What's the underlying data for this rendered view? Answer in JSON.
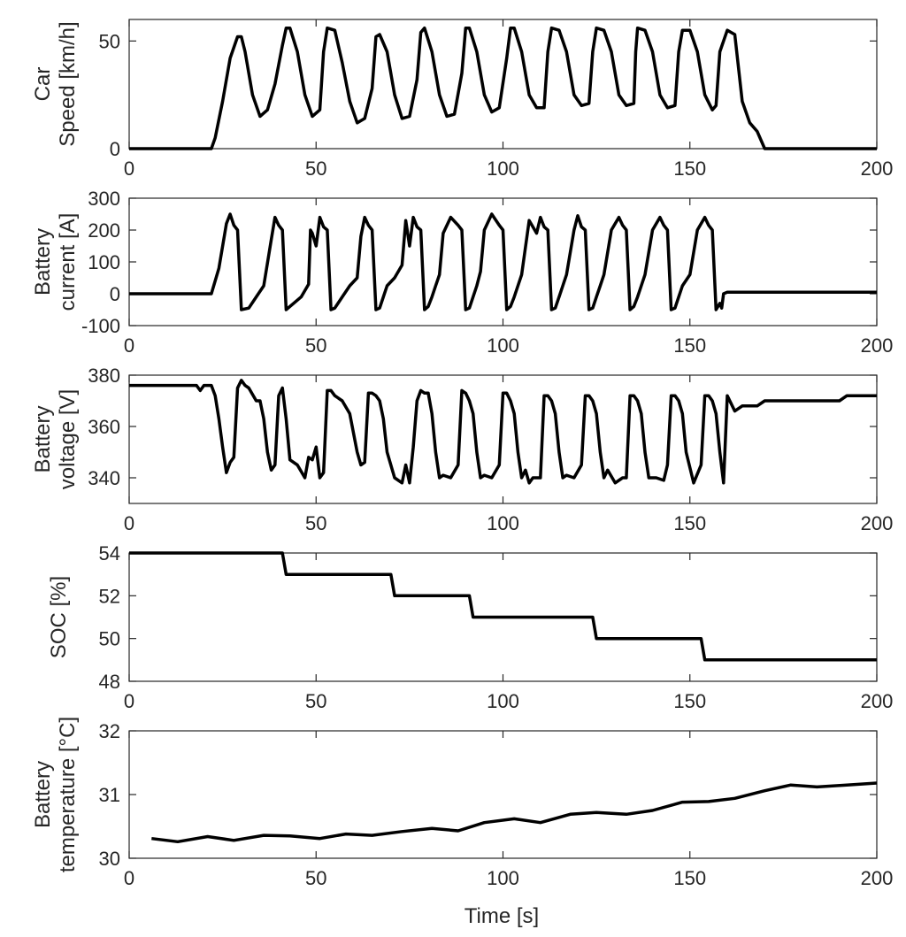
{
  "chart_data": [
    {
      "type": "line",
      "ylabel": [
        "Car",
        "Speed [km/h]"
      ],
      "xlim": [
        0,
        200
      ],
      "ylim": [
        0,
        60
      ],
      "xticks": [
        0,
        50,
        100,
        150,
        200
      ],
      "xtick_labels": [
        "0",
        "50",
        "100",
        "150",
        "200"
      ],
      "yticks": [
        0,
        50
      ],
      "ytick_labels": [
        "0",
        "50"
      ],
      "series": [
        {
          "name": "Car speed",
          "x": [
            0,
            22,
            23,
            25,
            27,
            29,
            30,
            31,
            33,
            35,
            37,
            39,
            41,
            42,
            43,
            45,
            47,
            49,
            51,
            52,
            53,
            55,
            57,
            59,
            61,
            63,
            65,
            66,
            67,
            69,
            71,
            73,
            75,
            77,
            78,
            79,
            81,
            83,
            85,
            87,
            89,
            90,
            91,
            93,
            95,
            97,
            99,
            101,
            102,
            103,
            105,
            107,
            109,
            111,
            112,
            113,
            115,
            117,
            119,
            121,
            123,
            124,
            125,
            127,
            129,
            131,
            133,
            135,
            135.5,
            136,
            138,
            140,
            142,
            144,
            146,
            147,
            148,
            150,
            152,
            154,
            156,
            157,
            158,
            160,
            162,
            164,
            166,
            168,
            170,
            200
          ],
          "y": [
            0,
            0,
            5,
            22,
            42,
            52,
            52,
            45,
            25,
            15,
            18,
            30,
            48,
            56,
            56,
            45,
            25,
            15,
            18,
            45,
            56,
            55,
            40,
            22,
            12,
            14,
            28,
            52,
            53,
            45,
            25,
            14,
            15,
            32,
            54,
            56,
            45,
            25,
            15,
            16,
            35,
            56,
            56,
            45,
            25,
            17,
            19,
            42,
            56,
            56,
            45,
            25,
            19,
            19,
            45,
            56,
            55,
            45,
            25,
            20,
            21,
            45,
            56,
            55,
            45,
            25,
            20,
            21,
            45,
            56,
            55,
            45,
            25,
            19,
            20,
            45,
            55,
            55,
            45,
            25,
            18,
            20,
            45,
            55,
            53,
            22,
            12,
            8,
            0,
            0
          ]
        }
      ]
    },
    {
      "type": "line",
      "ylabel": [
        "Battery",
        "current [A]"
      ],
      "xlim": [
        0,
        200
      ],
      "ylim": [
        -100,
        300
      ],
      "xticks": [
        0,
        50,
        100,
        150,
        200
      ],
      "xtick_labels": [
        "0",
        "50",
        "100",
        "150",
        "200"
      ],
      "yticks": [
        -100,
        0,
        100,
        200,
        300
      ],
      "ytick_labels": [
        "-100",
        "0",
        "100",
        "200",
        "300"
      ],
      "series": [
        {
          "name": "Battery current",
          "x": [
            0,
            22,
            24,
            26,
            27,
            28,
            29,
            30,
            32,
            34,
            36,
            38,
            39,
            40,
            41,
            42,
            44,
            46,
            48,
            48.5,
            49,
            50,
            51,
            52,
            53,
            54,
            55,
            57,
            59,
            61,
            62,
            63,
            64,
            65,
            66,
            67,
            68,
            69,
            71,
            73,
            74,
            75,
            76,
            77,
            78,
            79,
            80,
            81,
            82,
            83,
            84,
            86,
            88,
            89,
            90,
            91,
            92,
            93,
            94,
            95,
            97,
            99,
            100,
            101,
            102,
            103,
            104,
            105,
            107,
            109,
            110,
            111,
            112,
            113,
            114,
            115,
            116,
            117,
            119,
            120,
            121,
            122,
            123,
            124,
            125,
            126,
            127,
            129,
            131,
            132,
            133,
            134,
            135,
            136,
            137,
            138,
            140,
            142,
            143,
            144,
            145,
            146,
            147,
            148,
            150,
            152,
            154,
            155,
            156,
            157,
            158,
            158.5,
            159,
            160,
            200
          ],
          "y": [
            0,
            0,
            80,
            220,
            250,
            215,
            200,
            -50,
            -45,
            -10,
            25,
            170,
            240,
            215,
            200,
            -50,
            -30,
            -10,
            30,
            200,
            190,
            150,
            240,
            210,
            200,
            -50,
            -45,
            -10,
            25,
            50,
            180,
            240,
            215,
            200,
            -50,
            -45,
            -10,
            25,
            50,
            90,
            230,
            150,
            240,
            210,
            200,
            -50,
            -40,
            -10,
            25,
            60,
            190,
            240,
            215,
            200,
            -50,
            -45,
            -10,
            25,
            70,
            200,
            250,
            215,
            200,
            -50,
            -40,
            -10,
            25,
            60,
            230,
            190,
            240,
            210,
            200,
            -50,
            -45,
            -10,
            25,
            60,
            200,
            245,
            210,
            200,
            -50,
            -45,
            -10,
            25,
            60,
            200,
            240,
            215,
            200,
            -50,
            -40,
            -10,
            25,
            60,
            200,
            240,
            215,
            200,
            -50,
            -45,
            -10,
            25,
            60,
            200,
            240,
            215,
            200,
            -50,
            -30,
            -45,
            0,
            5,
            5
          ]
        }
      ]
    },
    {
      "type": "line",
      "ylabel": [
        "Battery",
        "voltage [V]"
      ],
      "xlim": [
        0,
        200
      ],
      "ylim": [
        330,
        380
      ],
      "xticks": [
        0,
        50,
        100,
        150,
        200
      ],
      "xtick_labels": [
        "0",
        "50",
        "100",
        "150",
        "200"
      ],
      "yticks": [
        340,
        360,
        380
      ],
      "ytick_labels": [
        "340",
        "360",
        "380"
      ],
      "series": [
        {
          "name": "Battery voltage",
          "x": [
            0,
            18,
            19,
            20,
            22,
            23,
            24,
            25,
            26,
            27,
            28,
            29,
            30,
            31,
            32,
            34,
            35,
            36,
            37,
            38,
            39,
            40,
            41,
            42,
            43,
            45,
            47,
            48,
            49,
            50,
            51,
            52,
            53,
            54,
            55,
            57,
            59,
            61,
            62,
            63,
            64,
            65,
            66,
            67,
            68,
            69,
            71,
            73,
            74,
            75,
            76,
            77,
            78,
            79,
            80,
            81,
            82,
            83,
            84,
            86,
            88,
            89,
            90,
            91,
            92,
            93,
            94,
            95,
            97,
            99,
            100,
            101,
            102,
            103,
            104,
            105,
            106,
            107,
            108,
            110,
            111,
            112,
            113,
            114,
            115,
            116,
            117,
            119,
            121,
            122,
            123,
            124,
            125,
            126,
            127,
            128,
            130,
            132,
            133,
            134,
            135,
            136,
            137,
            138,
            139,
            141,
            143,
            144,
            145,
            146,
            147,
            148,
            149,
            151,
            153,
            154,
            155,
            156,
            157,
            158,
            159,
            160,
            162,
            164,
            166,
            168,
            170,
            180,
            190,
            192,
            200
          ],
          "y": [
            376,
            376,
            374,
            376,
            376,
            372,
            363,
            352,
            342,
            346,
            348,
            375,
            378,
            376,
            375,
            370,
            370,
            363,
            350,
            343,
            345,
            372,
            375,
            363,
            347,
            345,
            340,
            348,
            347,
            352,
            340,
            342,
            374,
            374,
            372,
            370,
            365,
            350,
            345,
            346,
            373,
            373,
            372,
            370,
            363,
            350,
            340,
            338,
            345,
            338,
            352,
            370,
            374,
            373,
            373,
            365,
            350,
            340,
            341,
            340,
            345,
            374,
            373,
            370,
            365,
            350,
            340,
            341,
            340,
            345,
            373,
            373,
            370,
            365,
            350,
            340,
            343,
            338,
            340,
            340,
            372,
            372,
            370,
            365,
            350,
            340,
            341,
            340,
            345,
            372,
            372,
            370,
            365,
            350,
            340,
            343,
            338,
            340,
            340,
            372,
            372,
            370,
            365,
            350,
            340,
            340,
            339,
            345,
            372,
            372,
            370,
            365,
            350,
            338,
            345,
            372,
            372,
            370,
            365,
            350,
            338,
            372,
            366,
            368,
            368,
            368,
            370,
            370,
            370,
            372,
            372
          ]
        }
      ]
    },
    {
      "type": "line",
      "ylabel": [
        "SOC [%]"
      ],
      "xlim": [
        0,
        200
      ],
      "ylim": [
        48,
        54
      ],
      "xticks": [
        0,
        50,
        100,
        150,
        200
      ],
      "xtick_labels": [
        "0",
        "50",
        "100",
        "150",
        "200"
      ],
      "yticks": [
        48,
        50,
        52,
        54
      ],
      "ytick_labels": [
        "48",
        "50",
        "52",
        "54"
      ],
      "series": [
        {
          "name": "SOC",
          "x": [
            0,
            41,
            42,
            70,
            71,
            91,
            92,
            124,
            125,
            153,
            154,
            200
          ],
          "y": [
            54,
            54,
            53,
            53,
            52,
            52,
            51,
            51,
            50,
            50,
            49,
            49
          ]
        }
      ]
    },
    {
      "type": "line",
      "ylabel": [
        "Battery",
        "temperature [°C]"
      ],
      "xlabel": "Time [s]",
      "xlim": [
        0,
        200
      ],
      "ylim": [
        30,
        32
      ],
      "xticks": [
        0,
        50,
        100,
        150,
        200
      ],
      "xtick_labels": [
        "0",
        "50",
        "100",
        "150",
        "200"
      ],
      "yticks": [
        30,
        31,
        32
      ],
      "ytick_labels": [
        "30",
        "31",
        "32"
      ],
      "series": [
        {
          "name": "Battery temperature",
          "x": [
            6,
            13,
            21,
            28,
            36,
            43,
            51,
            58,
            65,
            73,
            81,
            88,
            95,
            103,
            110,
            118,
            125,
            133,
            140,
            148,
            155,
            162,
            170,
            177,
            184,
            192,
            200
          ],
          "y": [
            30.31,
            30.26,
            30.34,
            30.28,
            30.36,
            30.35,
            30.31,
            30.38,
            30.36,
            30.42,
            30.47,
            30.43,
            30.56,
            30.62,
            30.56,
            30.69,
            30.72,
            30.69,
            30.75,
            30.88,
            30.89,
            30.94,
            31.06,
            31.15,
            31.12,
            31.15,
            31.18
          ]
        }
      ]
    }
  ]
}
